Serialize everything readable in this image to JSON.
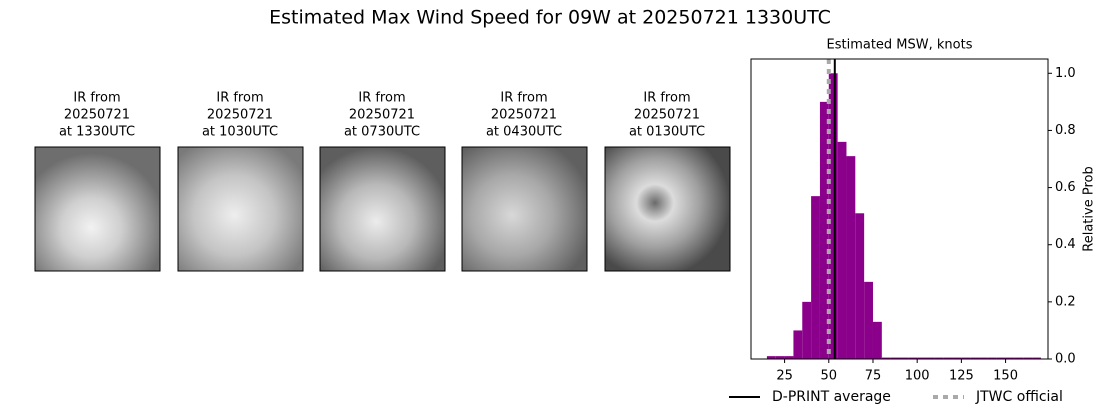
{
  "title": "Estimated Max Wind Speed for 09W at 20250721 1330UTC",
  "panels": [
    {
      "lines": [
        "IR from",
        "20250721",
        "at 1330UTC"
      ]
    },
    {
      "lines": [
        "IR from",
        "20250721",
        "at 1030UTC"
      ]
    },
    {
      "lines": [
        "IR from",
        "20250721",
        "at 0730UTC"
      ]
    },
    {
      "lines": [
        "IR from",
        "20250721",
        "at 0430UTC"
      ]
    },
    {
      "lines": [
        "IR from",
        "20250721",
        "at 0130UTC"
      ]
    }
  ],
  "chart_data": {
    "type": "histogram",
    "title": "Estimated MSW, knots",
    "y_label": "Relative Prob",
    "bins": [
      15,
      20,
      25,
      30,
      35,
      40,
      45,
      50,
      55,
      60,
      65,
      70,
      75,
      80,
      85,
      90,
      95,
      100,
      105,
      110,
      115,
      120,
      125,
      130,
      135,
      140,
      145,
      150,
      155,
      160,
      165,
      170
    ],
    "values": [
      0.01,
      0.01,
      0.01,
      0.1,
      0.2,
      0.57,
      0.9,
      1.0,
      0.76,
      0.71,
      0.51,
      0.27,
      0.13,
      0.005,
      0.005,
      0.005,
      0.005,
      0.005,
      0.005,
      0.005,
      0.005,
      0.005,
      0.005,
      0.005,
      0.005,
      0.005,
      0.005,
      0.005,
      0.005,
      0.005,
      0.005
    ],
    "color": "#8b008b",
    "xlim": [
      6,
      174
    ],
    "xticks": [
      25,
      50,
      75,
      100,
      125,
      150
    ],
    "ylim": [
      0,
      1.05
    ],
    "yticks": [
      {
        "value": 0,
        "label": "0.0"
      },
      {
        "value": 0.2,
        "label": "0.2"
      },
      {
        "value": 0.4,
        "label": "0.4"
      },
      {
        "value": 0.6,
        "label": "0.6"
      },
      {
        "value": 0.8,
        "label": "0.8"
      },
      {
        "value": 1.0,
        "label": "1.0"
      }
    ],
    "lines": [
      {
        "name": "D-PRINT average",
        "value": 53.4,
        "color": "#000000",
        "dash": "none"
      },
      {
        "name": "JTWC official",
        "value": 50,
        "color": "#a9a9a9",
        "dash": "5,5"
      }
    ]
  }
}
